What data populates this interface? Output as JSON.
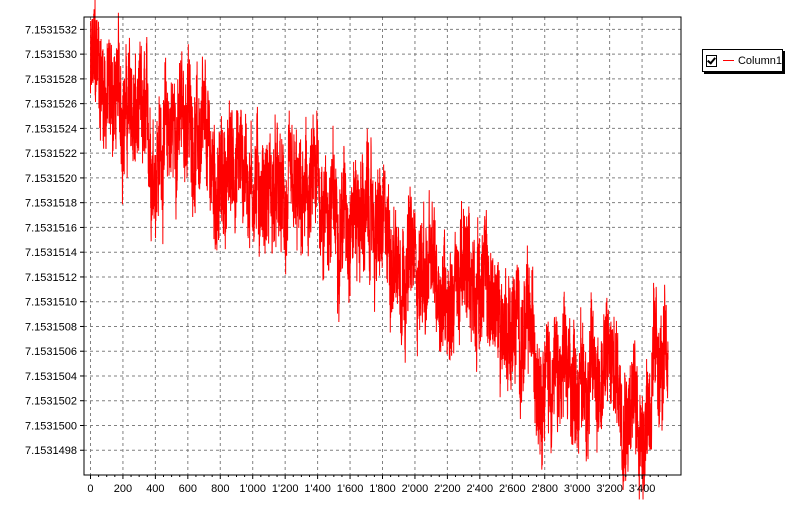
{
  "chart_data": {
    "type": "line",
    "title": "",
    "xlabel": "",
    "ylabel": "",
    "xlim": [
      -40,
      3640
    ],
    "ylim": [
      7.1531496,
      7.1531533
    ],
    "x_ticks": [
      0,
      200,
      400,
      600,
      800,
      1000,
      1200,
      1400,
      1600,
      1800,
      2000,
      2200,
      2400,
      2600,
      2800,
      3000,
      3200,
      3400
    ],
    "x_tick_labels": [
      "0",
      "200",
      "400",
      "600",
      "800",
      "1'000",
      "1'200",
      "1'400",
      "1'600",
      "1'800",
      "2'000",
      "2'200",
      "2'400",
      "2'600",
      "2'800",
      "3'000",
      "3'200",
      "3'400"
    ],
    "y_ticks": [
      7.1531498,
      7.15315,
      7.1531502,
      7.1531504,
      7.1531506,
      7.1531508,
      7.153151,
      7.1531512,
      7.1531514,
      7.1531516,
      7.1531518,
      7.153152,
      7.1531522,
      7.1531524,
      7.1531526,
      7.1531528,
      7.153153,
      7.1531532
    ],
    "y_tick_labels": [
      "7.1531498",
      "7.1531500",
      "7.1531502",
      "7.1531504",
      "7.1531506",
      "7.1531508",
      "7.1531510",
      "7.1531512",
      "7.1531514",
      "7.1531516",
      "7.1531518",
      "7.1531520",
      "7.1531522",
      "7.1531524",
      "7.1531526",
      "7.1531528",
      "7.1531530",
      "7.1531532"
    ],
    "grid": true,
    "legend": "top-right outside",
    "series": [
      {
        "name": "Column1",
        "color": "#ff0000",
        "x": [
          0,
          50,
          100,
          200,
          300,
          400,
          500,
          600,
          700,
          800,
          900,
          1000,
          1100,
          1200,
          1300,
          1400,
          1500,
          1600,
          1700,
          1800,
          1900,
          2000,
          2100,
          2200,
          2300,
          2400,
          2500,
          2600,
          2700,
          2800,
          2900,
          3000,
          3100,
          3200,
          3300,
          3400,
          3450,
          3500,
          3560
        ],
        "y": [
          7.1531528,
          7.1531529,
          7.1531527,
          7.1531526,
          7.1531524,
          7.1531522,
          7.1531524,
          7.1531525,
          7.1531522,
          7.1531519,
          7.1531522,
          7.153152,
          7.1531519,
          7.1531517,
          7.1531517,
          7.1531519,
          7.1531517,
          7.1531518,
          7.1531517,
          7.1531515,
          7.1531514,
          7.1531513,
          7.1531512,
          7.1531511,
          7.1531512,
          7.1531512,
          7.1531509,
          7.1531508,
          7.1531507,
          7.1531505,
          7.1531503,
          7.1531504,
          7.1531504,
          7.1531505,
          7.1531503,
          7.15315,
          7.1531503,
          7.1531505,
          7.1531503
        ],
        "noise_amplitude": 5e-07
      }
    ]
  }
}
